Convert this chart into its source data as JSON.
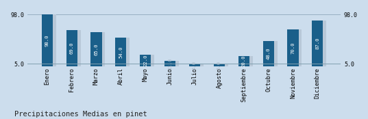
{
  "categories": [
    "Enero",
    "Febrero",
    "Marzo",
    "Abril",
    "Mayo",
    "Junio",
    "Julio",
    "Agosto",
    "Septiembre",
    "Octubre",
    "Noviembre",
    "Diciembre"
  ],
  "values": [
    98.0,
    69.0,
    65.0,
    54.0,
    22.0,
    11.0,
    4.0,
    5.0,
    20.0,
    48.0,
    70.0,
    87.0
  ],
  "bar_color": "#1a5f8a",
  "shadow_color": "#b8c8d8",
  "background_color": "#ccdded",
  "title": "Precipitaciones Medias en pinet",
  "ymin": 5.0,
  "ymax": 98.0,
  "yticks": [
    5.0,
    98.0
  ],
  "label_color": "#ffffff",
  "small_label_color": "#aabbcc",
  "title_fontsize": 7.5,
  "bar_label_fontsize": 5.2,
  "tick_fontsize": 6.0
}
